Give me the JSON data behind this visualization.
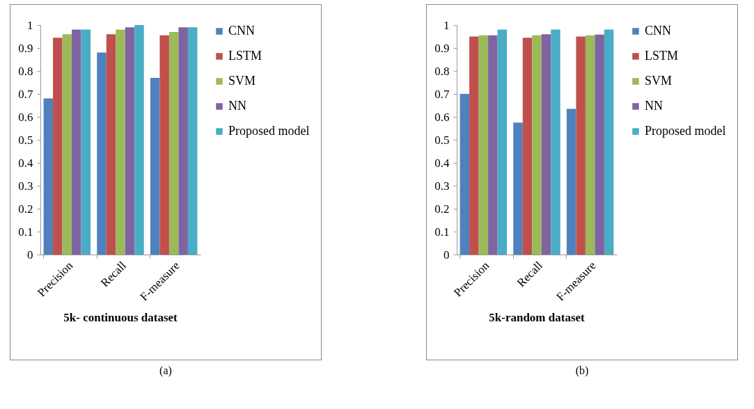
{
  "chart_data": [
    {
      "type": "bar",
      "title": "5k- continuous dataset",
      "categories": [
        "Precision",
        "Recall",
        "F-measure"
      ],
      "series": [
        {
          "name": "CNN",
          "color": "#4f81bd",
          "values": [
            0.68,
            0.88,
            0.77
          ]
        },
        {
          "name": "LSTM",
          "color": "#c0504d",
          "values": [
            0.945,
            0.96,
            0.955
          ]
        },
        {
          "name": "SVM",
          "color": "#9bbb59",
          "values": [
            0.96,
            0.98,
            0.97
          ]
        },
        {
          "name": "NN",
          "color": "#8064a2",
          "values": [
            0.98,
            0.99,
            0.99
          ]
        },
        {
          "name": "Proposed model",
          "color": "#4bacc6",
          "values": [
            0.98,
            1.0,
            0.99
          ]
        }
      ],
      "ylim": [
        0,
        1
      ],
      "yticks": [
        0,
        0.1,
        0.2,
        0.3,
        0.4,
        0.5,
        0.6,
        0.7,
        0.8,
        0.9,
        1
      ],
      "grid": false,
      "legend": "right",
      "annotations": [
        "(a)"
      ]
    },
    {
      "type": "bar",
      "title": "5k-random dataset",
      "categories": [
        "Precision",
        "Recall",
        "F-measure"
      ],
      "series": [
        {
          "name": "CNN",
          "color": "#4f81bd",
          "values": [
            0.7,
            0.575,
            0.635
          ]
        },
        {
          "name": "LSTM",
          "color": "#c0504d",
          "values": [
            0.95,
            0.945,
            0.95
          ]
        },
        {
          "name": "SVM",
          "color": "#9bbb59",
          "values": [
            0.955,
            0.955,
            0.955
          ]
        },
        {
          "name": "NN",
          "color": "#8064a2",
          "values": [
            0.955,
            0.96,
            0.958
          ]
        },
        {
          "name": "Proposed model",
          "color": "#4bacc6",
          "values": [
            0.98,
            0.98,
            0.98
          ]
        }
      ],
      "ylim": [
        0,
        1
      ],
      "yticks": [
        0,
        0.1,
        0.2,
        0.3,
        0.4,
        0.5,
        0.6,
        0.7,
        0.8,
        0.9,
        1
      ],
      "grid": false,
      "legend": "right",
      "annotations": [
        "(b)"
      ]
    }
  ]
}
